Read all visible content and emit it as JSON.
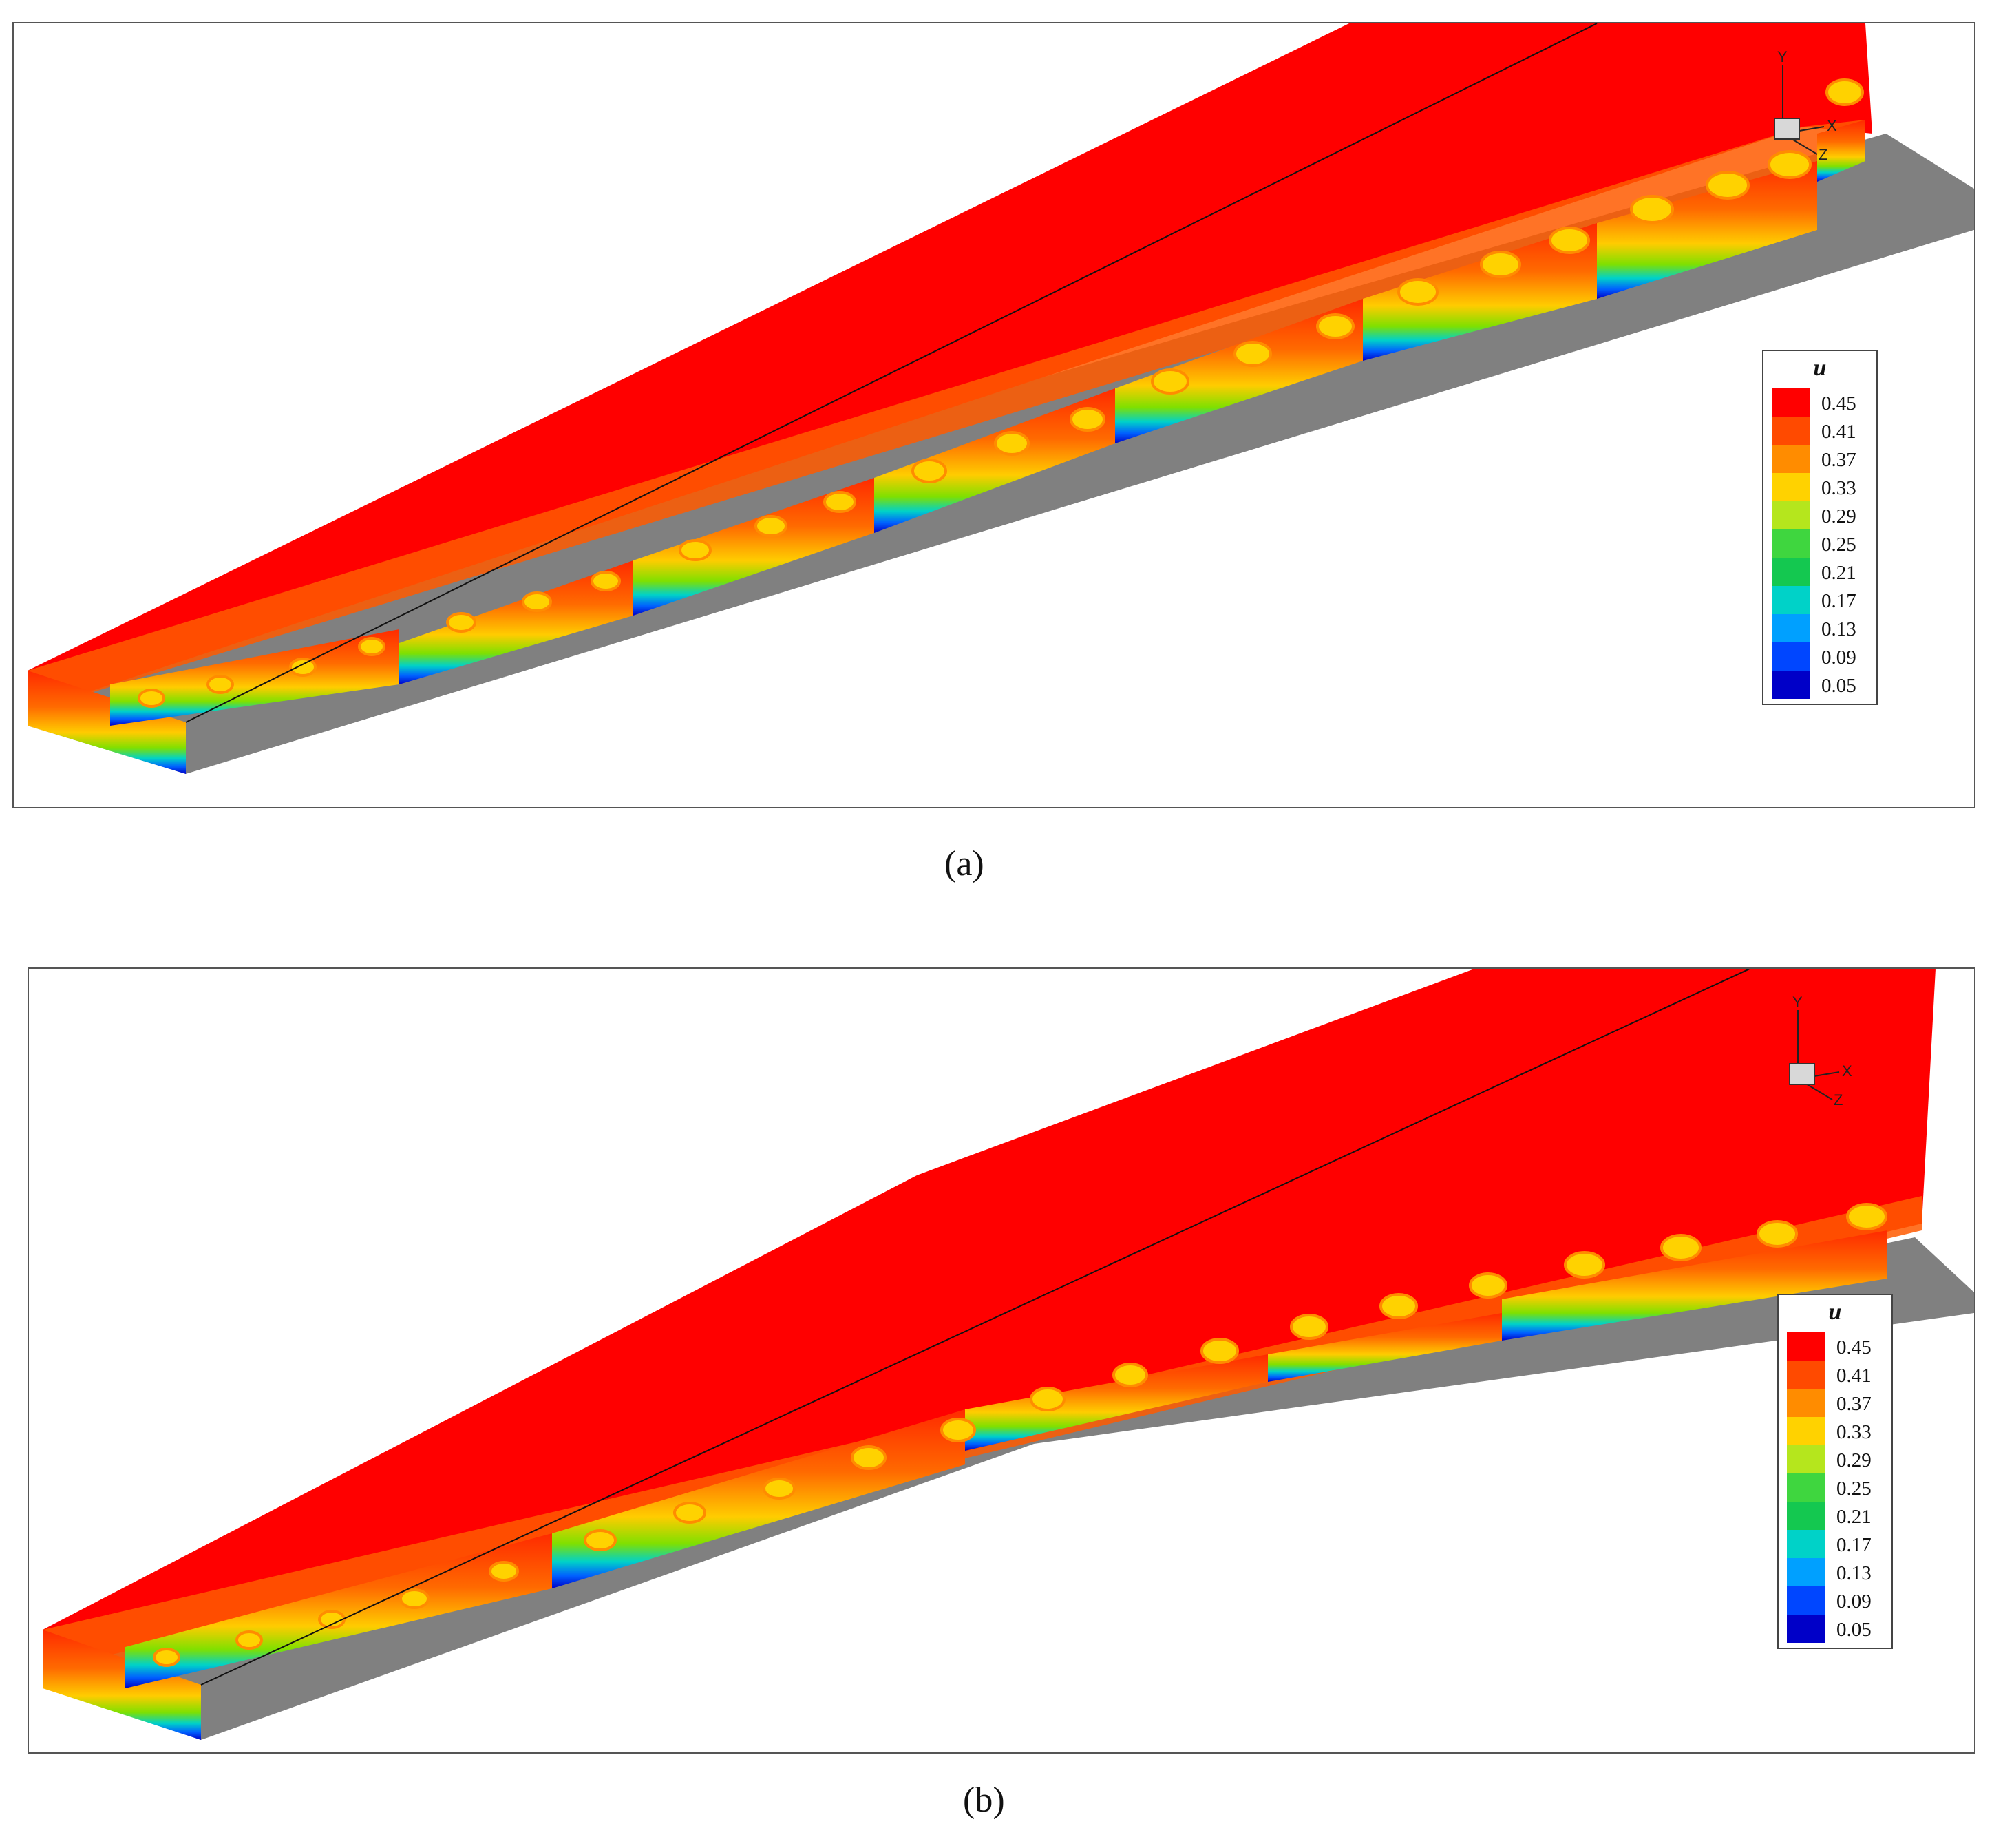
{
  "panels": [
    {
      "caption": "(a)",
      "legend": {
        "title": "u",
        "levels": [
          "0.45",
          "0.41",
          "0.37",
          "0.33",
          "0.29",
          "0.25",
          "0.21",
          "0.17",
          "0.13",
          "0.09",
          "0.05"
        ]
      },
      "axes": {
        "y": "Y",
        "x": "X",
        "z": "Z"
      }
    },
    {
      "caption": "(b)",
      "legend": {
        "title": "u",
        "levels": [
          "0.45",
          "0.41",
          "0.37",
          "0.33",
          "0.29",
          "0.25",
          "0.21",
          "0.17",
          "0.13",
          "0.09",
          "0.05"
        ]
      },
      "axes": {
        "y": "Y",
        "x": "X",
        "z": "Z"
      }
    }
  ],
  "colormap": [
    "#ff0000",
    "#ff4a00",
    "#ff8c00",
    "#ffd200",
    "#b5e61d",
    "#3fd63f",
    "#14c850",
    "#00d2c8",
    "#00a0ff",
    "#0046ff",
    "#0000c8"
  ],
  "surface_colors": {
    "flow_top": "#ff0000",
    "wall": "#808080"
  }
}
